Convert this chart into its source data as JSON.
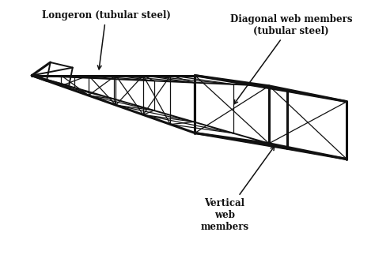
{
  "bg_color": "#ffffff",
  "line_color": "#111111",
  "lw": 1.4,
  "lw_thick": 2.2,
  "lw_thin": 0.9,
  "labels": {
    "longeron": "Longeron (tubular steel)",
    "diagonal": "Diagonal web members\n(tubular steel)",
    "vertical": "Vertical\nweb\nmembers"
  }
}
